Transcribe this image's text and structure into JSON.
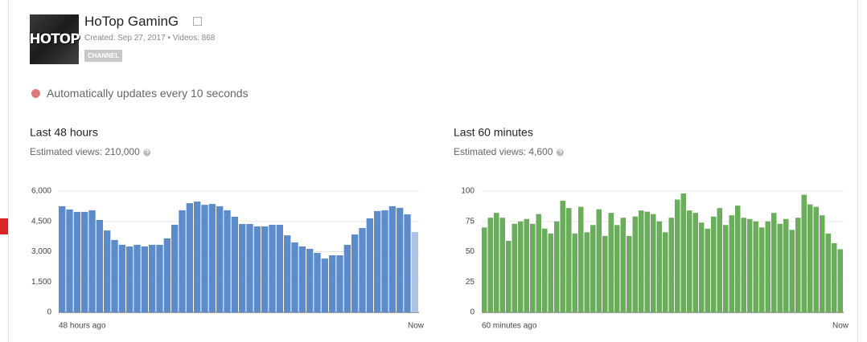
{
  "channel": {
    "avatar_text": "HOTOP",
    "name": "HoTop GaminG",
    "meta": "Created: Sep 27, 2017 • Videos: 868",
    "badge": "CHANNEL"
  },
  "status": "Automatically updates every 10 seconds",
  "chart_data": [
    {
      "type": "bar",
      "title": "Last 48 hours",
      "subtitle": "Estimated views: 210,000",
      "categories": [
        "48 hours ago",
        null,
        null,
        null,
        null,
        null,
        null,
        null,
        null,
        null,
        null,
        null,
        null,
        null,
        null,
        null,
        null,
        null,
        null,
        null,
        null,
        null,
        null,
        null,
        null,
        null,
        null,
        null,
        null,
        null,
        null,
        null,
        null,
        null,
        null,
        null,
        null,
        null,
        null,
        null,
        null,
        null,
        null,
        null,
        null,
        null,
        null,
        "Now"
      ],
      "values": [
        5250,
        5090,
        4970,
        4970,
        5050,
        4570,
        4050,
        3580,
        3340,
        3260,
        3340,
        3260,
        3340,
        3340,
        3660,
        4330,
        5050,
        5400,
        5480,
        5320,
        5360,
        5250,
        5050,
        4730,
        4370,
        4370,
        4250,
        4250,
        4330,
        4330,
        3810,
        3460,
        3260,
        3140,
        2940,
        2660,
        2820,
        2820,
        3340,
        3850,
        4170,
        4650,
        5010,
        5050,
        5250,
        5170,
        4850,
        3970
      ],
      "color": "#5b8bca",
      "last_color": "#aac3e6",
      "ylim": [
        0,
        6000
      ],
      "yticks": [
        0,
        {
          "value": 1500,
          "label": "1,500"
        },
        {
          "value": 3000,
          "label": "3,000"
        },
        {
          "value": 4500,
          "label": "4,500"
        },
        {
          "value": 6000,
          "label": "6,000"
        }
      ],
      "grid": true
    },
    {
      "type": "bar",
      "title": "Last 60 minutes",
      "subtitle": "Estimated views: 4,600",
      "categories": [
        "60 minutes ago",
        null,
        null,
        null,
        null,
        null,
        null,
        null,
        null,
        null,
        null,
        null,
        null,
        null,
        null,
        null,
        null,
        null,
        null,
        null,
        null,
        null,
        null,
        null,
        null,
        null,
        null,
        null,
        null,
        null,
        null,
        null,
        null,
        null,
        null,
        null,
        null,
        null,
        null,
        null,
        null,
        null,
        null,
        null,
        null,
        null,
        null,
        null,
        null,
        null,
        null,
        null,
        null,
        null,
        null,
        null,
        null,
        null,
        null,
        "Now"
      ],
      "values": [
        70,
        78,
        82,
        78,
        59,
        73,
        75,
        77,
        73,
        81,
        69,
        65,
        75,
        92,
        86,
        65,
        87,
        66,
        72,
        85,
        63,
        82,
        72,
        78,
        63,
        79,
        84,
        83,
        81,
        75,
        66,
        78,
        93,
        98,
        84,
        82,
        74,
        69,
        79,
        86,
        72,
        80,
        88,
        78,
        77,
        75,
        70,
        75,
        82,
        73,
        77,
        68,
        78,
        97,
        89,
        87,
        80,
        65,
        57,
        52
      ],
      "color": "#6aad5a",
      "ylim": [
        0,
        100
      ],
      "yticks": [
        0,
        25,
        50,
        75,
        100
      ],
      "grid": true
    }
  ]
}
